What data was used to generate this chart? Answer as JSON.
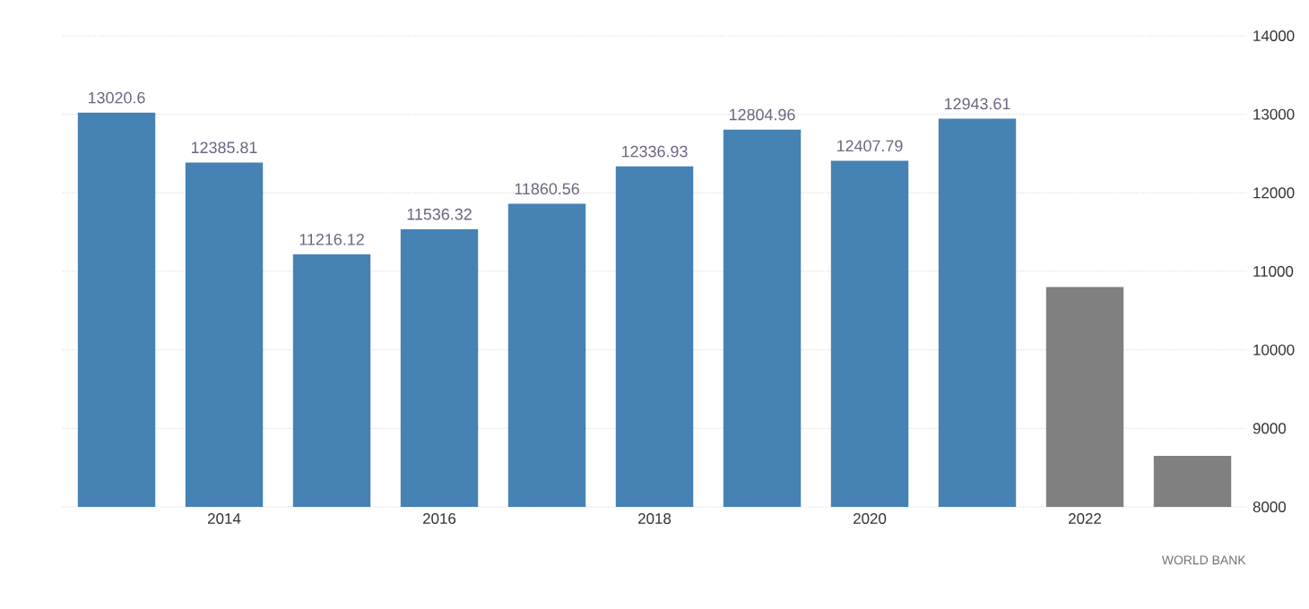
{
  "chart_data": {
    "type": "bar",
    "categories": [
      null,
      "2014",
      null,
      "2016",
      null,
      "2018",
      null,
      "2020",
      null,
      "2022",
      null
    ],
    "values": [
      13020.6,
      12385.81,
      11216.12,
      11536.32,
      11860.56,
      12336.93,
      12804.96,
      12407.79,
      12943.61,
      10800,
      8650
    ],
    "colors": [
      "#4682b4",
      "#4682b4",
      "#4682b4",
      "#4682b4",
      "#4682b4",
      "#4682b4",
      "#4682b4",
      "#4682b4",
      "#4682b4",
      "#808080",
      "#808080"
    ],
    "value_labels": [
      "13020.6",
      "12385.81",
      "11216.12",
      "11536.32",
      "11860.56",
      "12336.93",
      "12804.96",
      "12407.79",
      "12943.61",
      null,
      null
    ],
    "ylim": [
      8000,
      14000
    ],
    "yticks": [
      8000,
      9000,
      10000,
      11000,
      12000,
      13000,
      14000
    ],
    "grid": "y",
    "annotations": [
      "WORLD BANK"
    ]
  }
}
